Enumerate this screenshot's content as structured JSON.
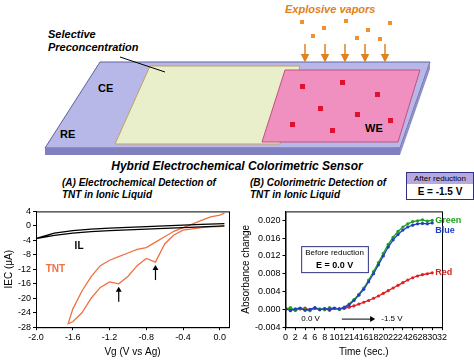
{
  "diagram": {
    "vapors_label": "Explosive vapors",
    "film_label": "Selective Preconcentration",
    "electrodes": [
      "CE",
      "RE",
      "WE"
    ],
    "caption": "Hybrid Electrochemical Colorimetric Sensor"
  },
  "chart_data": [
    {
      "type": "line",
      "title": "(A) Electrochemical Detection of TNT in Ionic Liquid",
      "x_label": "Vg (V vs Ag)",
      "y_label": "IEC (μA)",
      "xlim": [
        -2.0,
        0.1
      ],
      "xticks": [
        {
          "value": -2,
          "label": "-2.0"
        },
        -1.6,
        -1.2,
        -0.8,
        -0.4,
        {
          "value": 0,
          "label": "0.0"
        }
      ],
      "ylim": [
        -28,
        4
      ],
      "yticks": [
        -28,
        -24,
        -20,
        -16,
        -12,
        -8,
        -4,
        0,
        4
      ],
      "grid": false,
      "marker": "none",
      "series": [
        {
          "name": "IL",
          "color": "#000000",
          "x": [
            0.05,
            -0.2,
            -0.4,
            -0.6,
            -0.8,
            -1.0,
            -1.2,
            -1.4,
            -1.6,
            -1.8,
            -2.0,
            -1.8,
            -1.6,
            -1.4,
            -1.2,
            -1.0,
            -0.8,
            -0.6,
            -0.4,
            -0.2,
            0.05
          ],
          "values": [
            0,
            -0.3,
            -0.5,
            -0.7,
            -0.9,
            -1.1,
            -1.3,
            -1.6,
            -2.0,
            -2.6,
            -3.5,
            -2.0,
            -1.3,
            -0.9,
            -0.6,
            -0.4,
            -0.2,
            0,
            0.2,
            0.4,
            0.6
          ]
        },
        {
          "name": "TNT",
          "color": "#f07040",
          "x": [
            0.05,
            0.0,
            -0.1,
            -0.2,
            -0.3,
            -0.4,
            -0.5,
            -0.6,
            -0.7,
            -0.8,
            -0.9,
            -1.0,
            -1.1,
            -1.2,
            -1.3,
            -1.4,
            -1.5,
            -1.6,
            -1.65,
            -1.6,
            -1.5,
            -1.4,
            -1.3,
            -1.2,
            -1.1,
            -1.0,
            -0.9,
            -0.8,
            -0.7,
            -0.6,
            -0.5,
            -0.4,
            -0.3,
            -0.2,
            -0.1,
            0.0,
            0.05
          ],
          "values": [
            0,
            -0.2,
            -0.3,
            -0.5,
            -0.8,
            -1.2,
            -2.5,
            -5,
            -10,
            -9,
            -11,
            -14,
            -16,
            -15.5,
            -17,
            -20,
            -24,
            -26.5,
            -27,
            -23,
            -18,
            -14,
            -11,
            -9.5,
            -8.5,
            -7.5,
            -6.5,
            -6,
            -4.5,
            -3,
            -1.5,
            -0.5,
            0.5,
            1.5,
            2.5,
            3,
            3.5
          ]
        }
      ]
    },
    {
      "type": "line",
      "title": "(B) Colorimetric Detection of TNT in Ionic Liquid",
      "x_label": "Time (sec.)",
      "y_label": "Absorbance change",
      "x": [
        0,
        1,
        2,
        3,
        4,
        5,
        6,
        7,
        8,
        9,
        10,
        11,
        12,
        13,
        14,
        15,
        16,
        17,
        18,
        19,
        20,
        21,
        22,
        23,
        24,
        25,
        26,
        27,
        28,
        29,
        30
      ],
      "xlim": [
        0,
        32
      ],
      "xticks": [
        0,
        2,
        4,
        6,
        8,
        10,
        12,
        14,
        16,
        18,
        20,
        22,
        24,
        26,
        28,
        30,
        32
      ],
      "ylim": [
        -0.004,
        0.022
      ],
      "yticks": [
        -0.004,
        {
          "value": 0,
          "label": "0.000"
        },
        0.004,
        0.008,
        0.012,
        0.016,
        {
          "value": 0.02,
          "label": "0.020"
        }
      ],
      "grid": false,
      "marker": "circle",
      "annotations": [
        {
          "title": "Before reduction",
          "text": "E = 0.0 V"
        },
        {
          "title": "After reduction",
          "text": "E = -1.5 V"
        },
        {
          "text": "0.0 V"
        },
        {
          "text": "-1.5 V"
        }
      ],
      "series": [
        {
          "name": "Blue",
          "color": "#2040c0",
          "values": [
            0.0002,
            -0.0003,
            0.0001,
            0.0003,
            -0.0002,
            0,
            0.0004,
            -0.0001,
            0.0002,
            0,
            0.0003,
            0.0001,
            0.0004,
            0.001,
            0.002,
            0.0032,
            0.0045,
            0.0062,
            0.008,
            0.01,
            0.012,
            0.014,
            0.0156,
            0.0168,
            0.0178,
            0.0185,
            0.0189,
            0.0192,
            0.0193,
            0.0192,
            0.0194
          ]
        },
        {
          "name": "Green",
          "color": "#20a020",
          "values": [
            0.0001,
            0.0004,
            -0.0002,
            0.0002,
            0,
            -0.0003,
            0.0003,
            0.0001,
            -0.0001,
            0.0004,
            0.0002,
            0,
            0.0005,
            0.0012,
            0.0022,
            0.0034,
            0.0048,
            0.0066,
            0.0085,
            0.0105,
            0.0126,
            0.0146,
            0.0162,
            0.0175,
            0.0185,
            0.0192,
            0.0197,
            0.0199,
            0.0201,
            0.0198,
            0.02
          ]
        },
        {
          "name": "Red",
          "color": "#e02020",
          "values": [
            0,
            0.0002,
            -0.0002,
            0.0001,
            0.0003,
            -0.0001,
            0.0002,
            0,
            0.0001,
            -0.0002,
            0.0002,
            0.0001,
            0.0002,
            0.0005,
            0.0008,
            0.0012,
            0.0016,
            0.002,
            0.0025,
            0.003,
            0.0036,
            0.0042,
            0.0048,
            0.0054,
            0.006,
            0.0066,
            0.0071,
            0.0075,
            0.0078,
            0.008,
            0.0082
          ]
        }
      ]
    }
  ]
}
